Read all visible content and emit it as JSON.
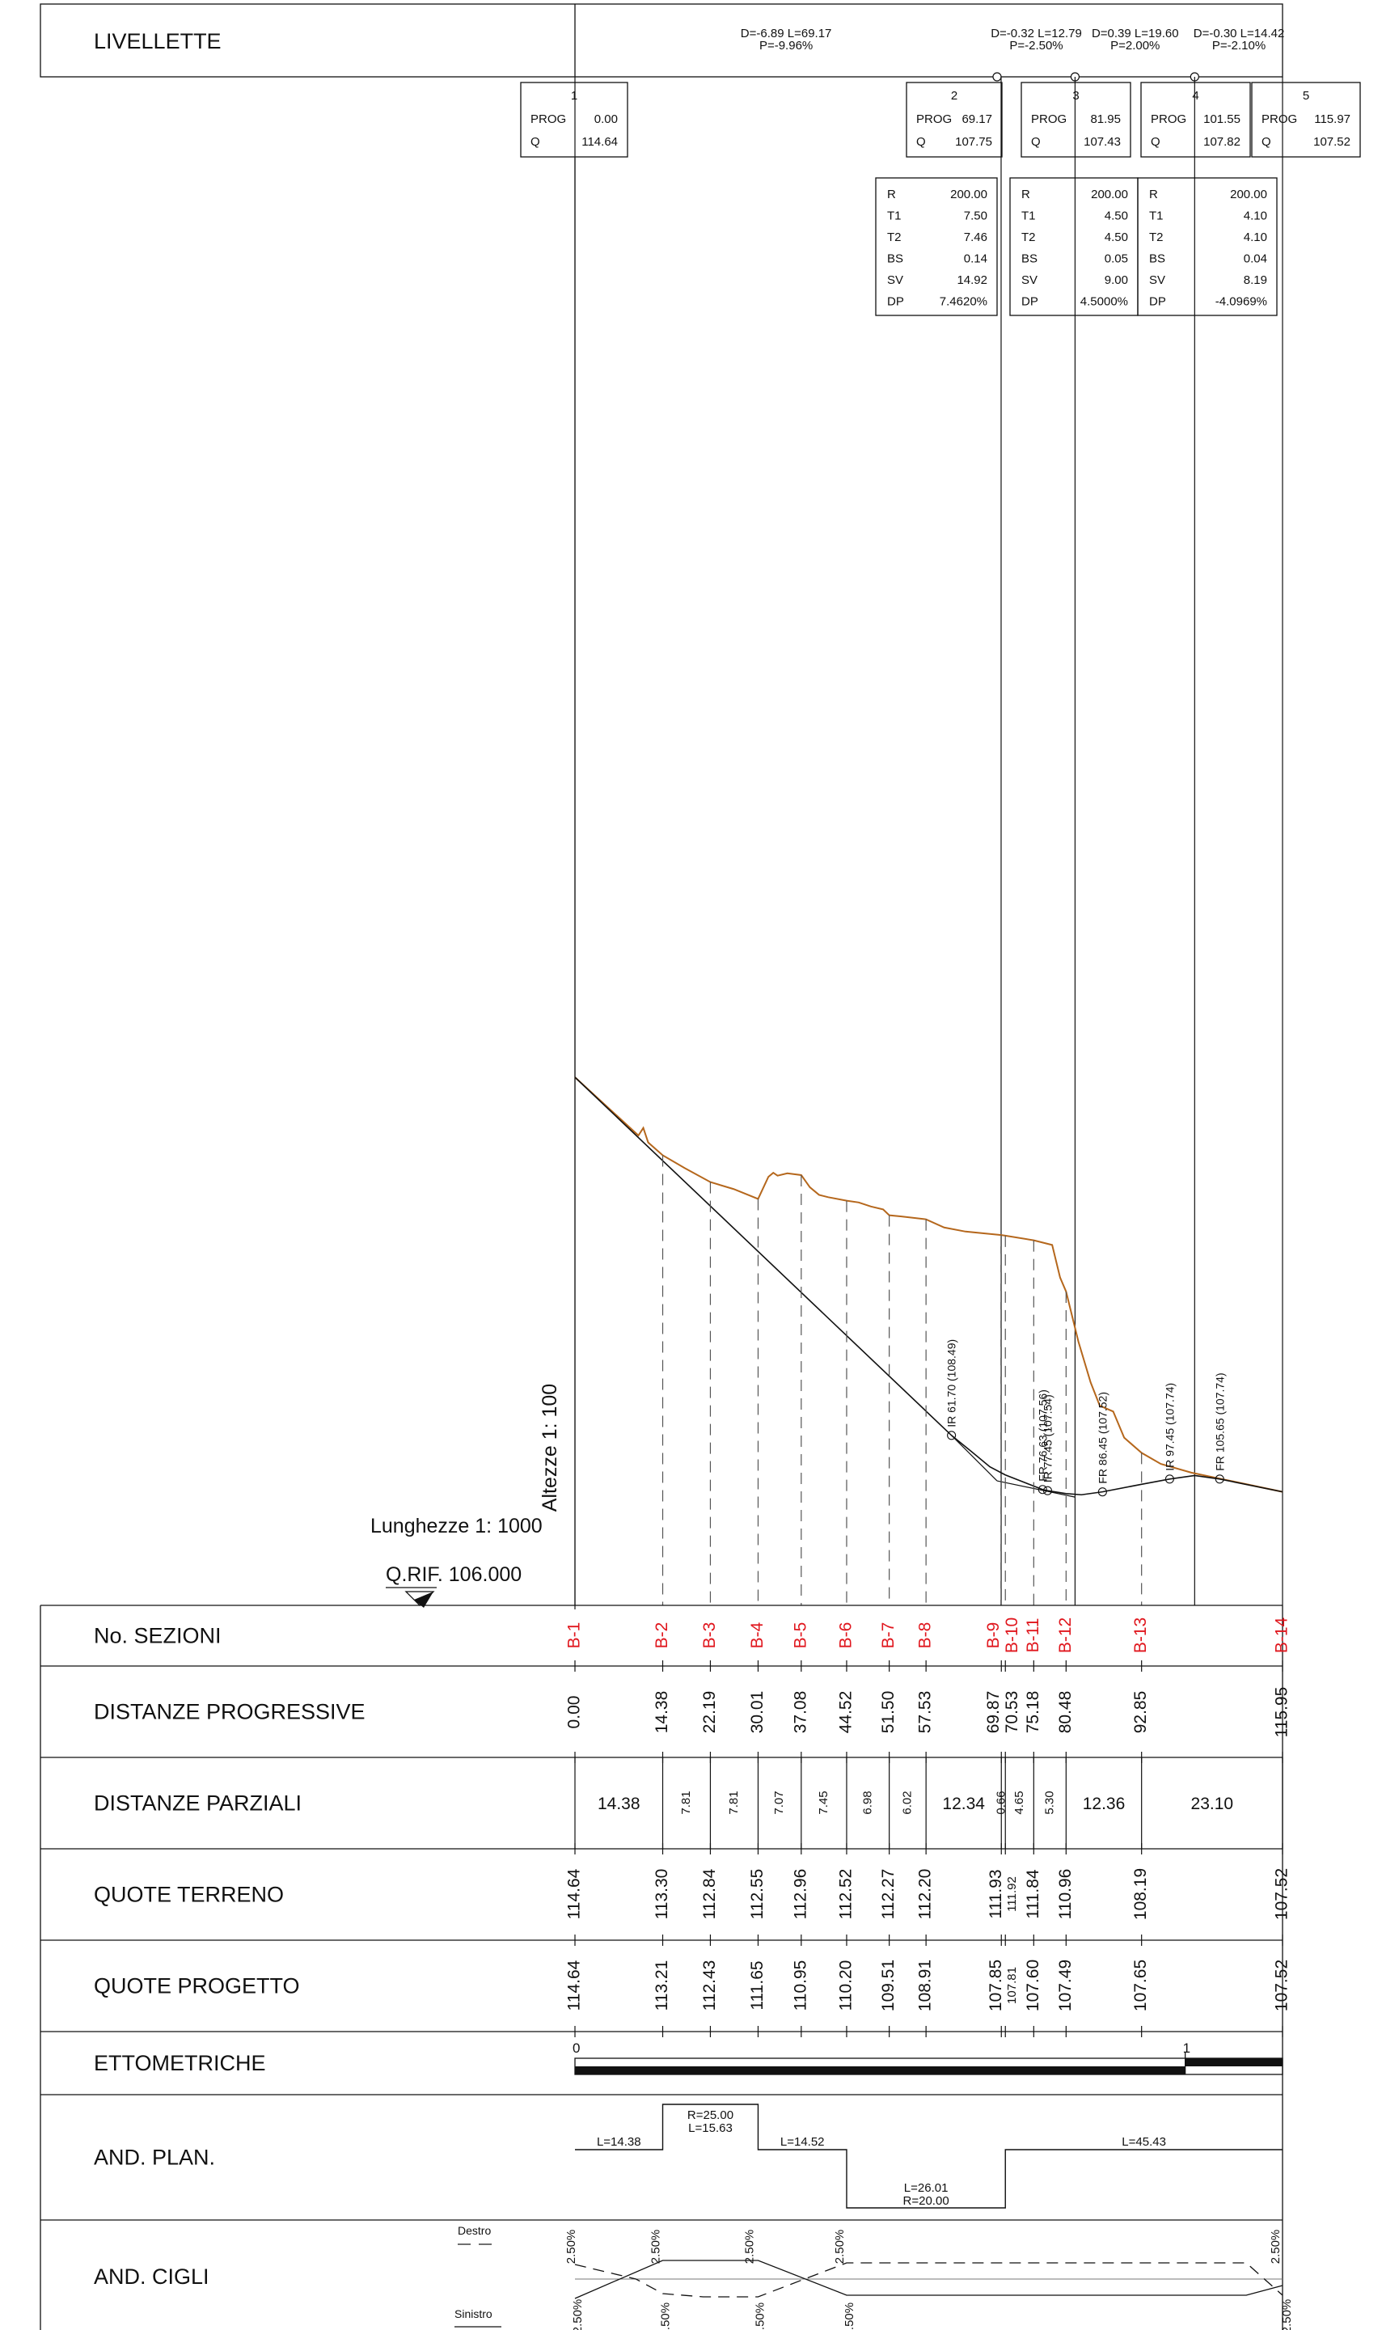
{
  "livellette": {
    "label": "LIVELLETTE",
    "segments": [
      {
        "text1": "D=-6.89 L=69.17",
        "text2": "P=-9.96%"
      },
      {
        "text1": "D=-0.32 L=12.79",
        "text2": "P=-2.50%"
      },
      {
        "text1": "D=0.39 L=19.60",
        "text2": "P=2.00%"
      },
      {
        "text1": "D=-0.30 L=14.42",
        "text2": "P=-2.10%"
      }
    ]
  },
  "vertices": [
    {
      "num": "1",
      "prog_label": "PROG",
      "prog": "0.00",
      "q_label": "Q",
      "q": "114.64"
    },
    {
      "num": "2",
      "prog_label": "PROG",
      "prog": "69.17",
      "q_label": "Q",
      "q": "107.75"
    },
    {
      "num": "3",
      "prog_label": "PROG",
      "prog": "81.95",
      "q_label": "Q",
      "q": "107.43"
    },
    {
      "num": "4",
      "prog_label": "PROG",
      "prog": "101.55",
      "q_label": "Q",
      "q": "107.82"
    },
    {
      "num": "5",
      "prog_label": "PROG",
      "prog": "115.97",
      "q_label": "Q",
      "q": "107.52"
    }
  ],
  "curves": [
    {
      "rows": [
        [
          "R",
          "200.00"
        ],
        [
          "T1",
          "7.50"
        ],
        [
          "T2",
          "7.46"
        ],
        [
          "BS",
          "0.14"
        ],
        [
          "SV",
          "14.92"
        ],
        [
          "DP",
          "7.4620%"
        ]
      ]
    },
    {
      "rows": [
        [
          "R",
          "200.00"
        ],
        [
          "T1",
          "4.50"
        ],
        [
          "T2",
          "4.50"
        ],
        [
          "BS",
          "0.05"
        ],
        [
          "SV",
          "9.00"
        ],
        [
          "DP",
          "4.5000%"
        ]
      ]
    },
    {
      "rows": [
        [
          "R",
          "200.00"
        ],
        [
          "T1",
          "4.10"
        ],
        [
          "T2",
          "4.10"
        ],
        [
          "BS",
          "0.04"
        ],
        [
          "SV",
          "8.19"
        ],
        [
          "DP",
          "-4.0969%"
        ]
      ]
    }
  ],
  "scales": {
    "altezze": "Altezze 1: 100",
    "lunghezze": "Lunghezze 1: 1000",
    "qrif": "Q.RIF. 106.000"
  },
  "profile_points": [
    {
      "code": "IR",
      "prog": "61.70",
      "quota": "(108.49)"
    },
    {
      "code": "FR",
      "prog": "76.63",
      "quota": "(107.56)"
    },
    {
      "code": "IR",
      "prog": "77.45",
      "quota": "(107.54)"
    },
    {
      "code": "FR",
      "prog": "86.45",
      "quota": "(107.52)"
    },
    {
      "code": "IR",
      "prog": "97.45",
      "quota": "(107.74)"
    },
    {
      "code": "FR",
      "prog": "105.65",
      "quota": "(107.74)"
    }
  ],
  "table": {
    "rows": {
      "sezioni": "No. SEZIONI",
      "progressive": "DISTANZE PROGRESSIVE",
      "parziali": "DISTANZE PARZIALI",
      "terreno": "QUOTE TERRENO",
      "progetto": "QUOTE PROGETTO",
      "ettometriche": "ETTOMETRICHE",
      "andplan": "AND. PLAN.",
      "andcigli": "AND. CIGLI"
    },
    "sections": [
      {
        "name": "B-1",
        "prog": "0.00",
        "terreno": "114.64",
        "progetto": "114.64"
      },
      {
        "name": "B-2",
        "prog": "14.38",
        "terreno": "113.30",
        "progetto": "113.21"
      },
      {
        "name": "B-3",
        "prog": "22.19",
        "terreno": "112.84",
        "progetto": "112.43"
      },
      {
        "name": "B-4",
        "prog": "30.01",
        "terreno": "112.55",
        "progetto": "111.65"
      },
      {
        "name": "B-5",
        "prog": "37.08",
        "terreno": "112.96",
        "progetto": "110.95"
      },
      {
        "name": "B-6",
        "prog": "44.52",
        "terreno": "112.52",
        "progetto": "110.20"
      },
      {
        "name": "B-7",
        "prog": "51.50",
        "terreno": "112.27",
        "progetto": "109.51"
      },
      {
        "name": "B-8",
        "prog": "57.53",
        "terreno": "112.20",
        "progetto": "108.91"
      },
      {
        "name": "B-9",
        "prog": "69.87",
        "terreno": "111.93",
        "progetto": "107.85"
      },
      {
        "name": "B-10",
        "prog": "70.53",
        "terreno": "111.92",
        "progetto": "107.81"
      },
      {
        "name": "B-11",
        "prog": "75.18",
        "terreno": "111.84",
        "progetto": "107.60"
      },
      {
        "name": "B-12",
        "prog": "80.48",
        "terreno": "110.96",
        "progetto": "107.49"
      },
      {
        "name": "B-13",
        "prog": "92.85",
        "terreno": "108.19",
        "progetto": "107.65"
      },
      {
        "name": "B-14",
        "prog": "115.95",
        "terreno": "107.52",
        "progetto": "107.52"
      }
    ],
    "partials": [
      "14.38",
      "7.81",
      "7.81",
      "7.07",
      "7.45",
      "6.98",
      "6.02",
      "12.34",
      "0.66",
      "4.65",
      "5.30",
      "12.36",
      "23.10"
    ],
    "ettometriche": {
      "start": "0",
      "mid": "1"
    },
    "andplan": [
      {
        "text1": "L=14.38"
      },
      {
        "text1": "R=25.00",
        "text2": "L=15.63"
      },
      {
        "text1": "L=14.52"
      },
      {
        "text1": "L=26.01",
        "text2": "R=20.00"
      },
      {
        "text1": "L=45.43"
      }
    ],
    "andcigli": {
      "destro": "Destro",
      "sinistro": "Sinistro",
      "top_pcts": [
        "2.50%",
        "2.50%",
        "2.50%",
        "2.50%",
        "2.50%"
      ],
      "bottom_pcts": [
        "2.50%",
        ".50%",
        ".50%",
        ".50%",
        "2.50%"
      ]
    }
  }
}
